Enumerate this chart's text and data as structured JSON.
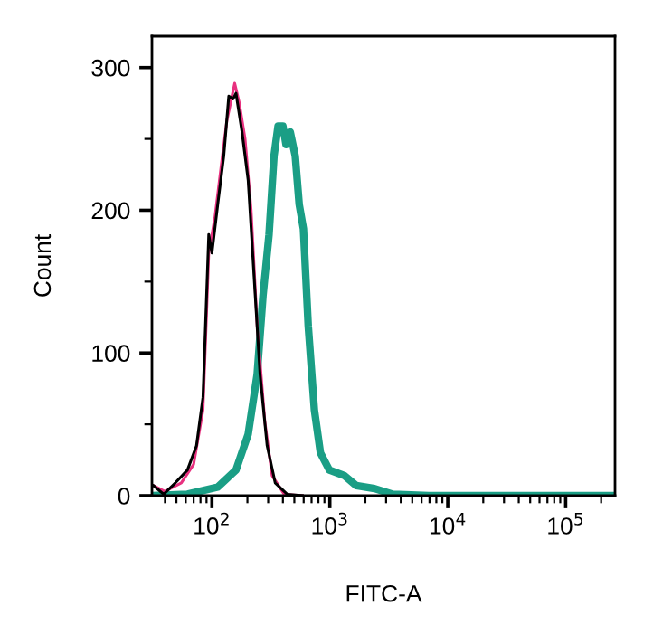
{
  "chart_data": {
    "type": "line",
    "xlabel": "FITC-A",
    "ylabel": "Count",
    "log": "x",
    "grid": false,
    "legend": false,
    "xlim": [
      31,
      262144
    ],
    "ylim": [
      0,
      322
    ],
    "xticks": [
      {
        "value": 100,
        "label": "10$^{2}$"
      },
      {
        "value": 1000,
        "label": "10$^{3}$"
      },
      {
        "value": 10000,
        "label": "10$^{4}$"
      },
      {
        "value": 100000,
        "label": "10$^{5}$"
      }
    ],
    "yticks": [
      0,
      100,
      200,
      300
    ],
    "series": [
      {
        "color": "#1a9e85",
        "x": [
          31,
          62,
          112,
          160,
          203,
          242,
          271,
          305,
          336,
          364,
          400,
          425,
          461,
          509,
          550,
          597,
          656,
          740,
          832,
          990,
          1330,
          1680,
          2390,
          3420,
          6900,
          262144
        ],
        "values": [
          0,
          1,
          6,
          18,
          43,
          85,
          140,
          183,
          238,
          259,
          259,
          246,
          255,
          238,
          204,
          187,
          119,
          60,
          30,
          18,
          14,
          7,
          5,
          1,
          0,
          0
        ]
      },
      {
        "color": "#e8317f",
        "x": [
          32,
          40,
          55,
          70,
          84,
          94,
          106,
          119,
          134,
          156,
          170,
          191,
          215,
          242,
          281,
          324,
          410,
          585
        ],
        "values": [
          7,
          3,
          9,
          22,
          60,
          170,
          195,
          229,
          263,
          289,
          276,
          250,
          200,
          119,
          52,
          14,
          1,
          0
        ]
      },
      {
        "color": "#000000",
        "x": [
          32,
          39,
          49,
          62,
          74,
          84,
          94,
          100,
          112,
          126,
          139,
          151,
          160,
          180,
          203,
          228,
          256,
          294,
          344,
          435,
          585
        ],
        "values": [
          7,
          1,
          9,
          18,
          35,
          69,
          183,
          170,
          204,
          238,
          280,
          278,
          282,
          255,
          221,
          153,
          85,
          35,
          9,
          1,
          0
        ]
      }
    ]
  }
}
